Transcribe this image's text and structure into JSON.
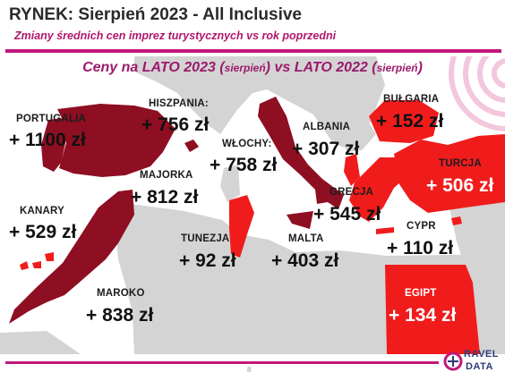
{
  "header": {
    "title": "RYNEK: Sierpień 2023 - All Inclusive",
    "subtitle": "Zmiany średnich cen imprez turystycznych vs rok poprzedni"
  },
  "heading": {
    "part1": "Ceny na LATO 2023 (",
    "part1_small": "sierpień",
    "part2": ") vs  LATO 2022 (",
    "part2_small": "sierpień",
    "part3": ")"
  },
  "countries": {
    "portugalia": {
      "name": "PORTUGALIA",
      "price": "+ 1100 zł"
    },
    "hiszpania": {
      "name": "HISZPANIA:",
      "price": "+ 756 zł"
    },
    "wlochy": {
      "name": "WŁOCHY:",
      "price": "+ 758 zł"
    },
    "albania": {
      "name": "ALBANIA",
      "price": "+ 307 zł"
    },
    "bulgaria": {
      "name": "BUŁGARIA",
      "price": "+ 152 zł"
    },
    "turcja": {
      "name": "TURCJA",
      "price": "+ 506 zł"
    },
    "majorka": {
      "name": "MAJORKA",
      "price": "+ 812 zł"
    },
    "grecja": {
      "name": "GRECJA",
      "price": "+ 545 zł"
    },
    "kanary": {
      "name": "KANARY",
      "price": "+ 529 zł"
    },
    "cypr": {
      "name": "CYPR",
      "price": "+ 110 zł"
    },
    "tunezja": {
      "name": "TUNEZJA",
      "price": "+ 92 zł"
    },
    "malta": {
      "name": "MALTA",
      "price": "+ 403 zł"
    },
    "maroko": {
      "name": "MAROKO",
      "price": "+ 838 zł"
    },
    "egipt": {
      "name": "EGIPT",
      "price": "+ 134 zł"
    }
  },
  "footer": {
    "page_number": "8",
    "logo_line1": "RAVEL",
    "logo_line2": "DATA"
  },
  "colors": {
    "accent": "#c2187a",
    "dark_red": "#8e0e22",
    "bright_red": "#f01c1c",
    "land": "#d4d4d4",
    "sea": "#ffffff"
  }
}
